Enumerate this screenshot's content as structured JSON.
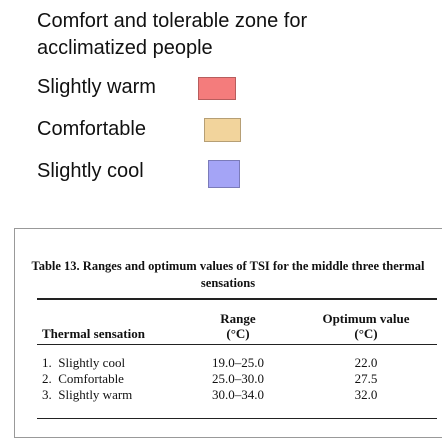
{
  "legend": {
    "title": "Comfort and tolerable zone for acclimatized people",
    "items": [
      {
        "label": "Slightly warm",
        "color": "#f47c7c"
      },
      {
        "label": "Comfortable",
        "color": "#f2d49c"
      },
      {
        "label": "Slightly cool",
        "color": "#a4a4f6"
      }
    ]
  },
  "table": {
    "caption": "Table 13. Ranges and optimum values of TSI for the middle three thermal sensations",
    "columns": [
      {
        "label": "Thermal sensation"
      },
      {
        "label": "Range",
        "unit": "(°C)"
      },
      {
        "label": "Optimum value",
        "unit": "(°C)"
      }
    ],
    "rows": [
      [
        "1.  Slightly cool",
        "19.0–25.0",
        "22.0"
      ],
      [
        "2.  Comfortable",
        "25.0–30.0",
        "27.5"
      ],
      [
        "3.  Slightly warm",
        "30.0–34.0",
        "32.0"
      ]
    ]
  }
}
